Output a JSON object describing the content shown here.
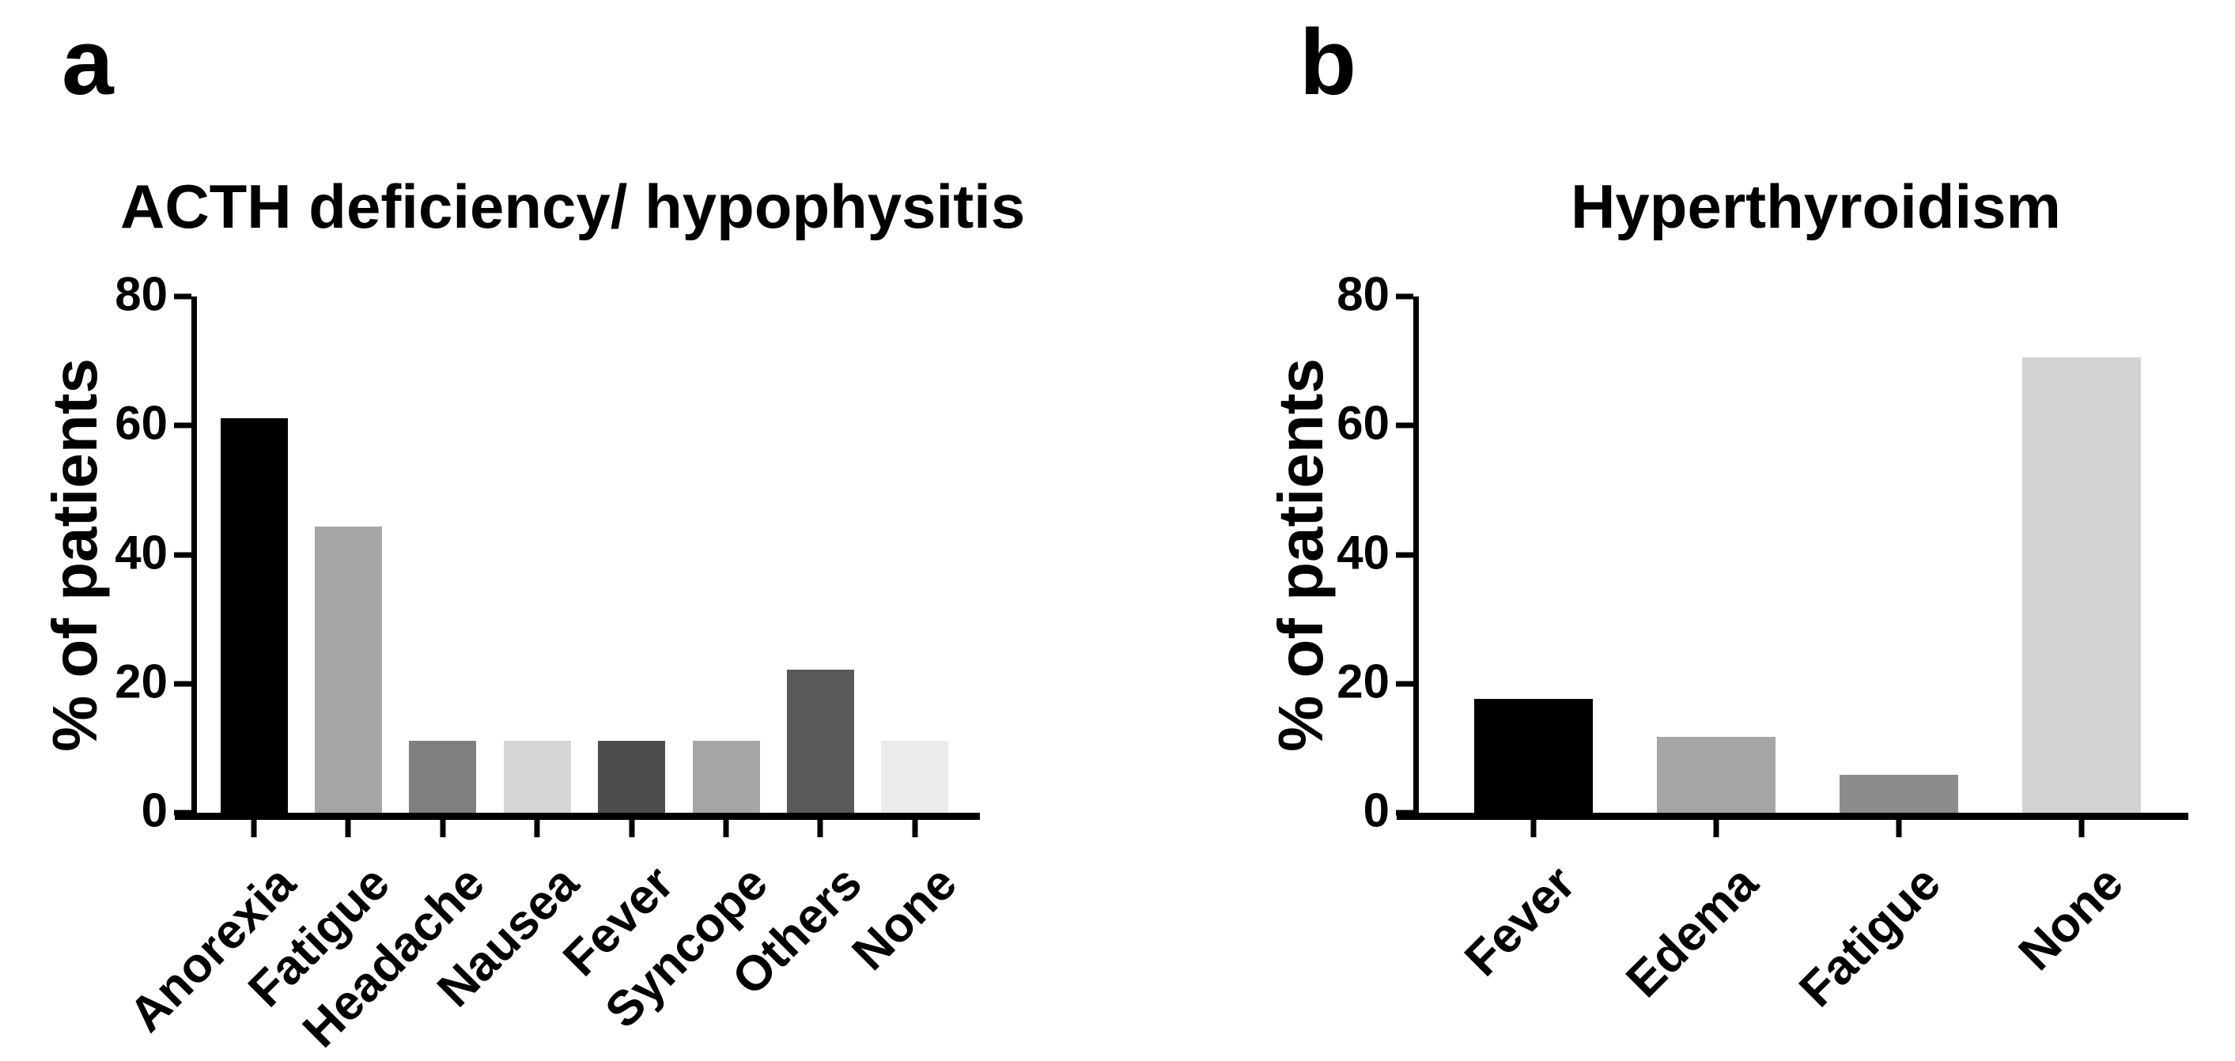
{
  "figure": {
    "background": "#ffffff",
    "axis_color": "#000000",
    "panels": [
      {
        "letter": "a",
        "title": "ACTH deficiency/ hypophysitis",
        "ylabel": "% of patients"
      },
      {
        "letter": "b",
        "title": "Hyperthyroidism",
        "ylabel": "% of patients"
      }
    ]
  },
  "chart_data": [
    {
      "type": "bar",
      "title": "ACTH deficiency/ hypophysitis",
      "xlabel": "",
      "ylabel": "% of patients",
      "categories": [
        "Anorexia",
        "Fatigue",
        "Headache",
        "Nausea",
        "Fever",
        "Syncope",
        "Others",
        "None"
      ],
      "values": [
        61.1,
        44.4,
        11.1,
        11.1,
        11.1,
        11.1,
        22.2,
        11.1
      ],
      "bar_colors": [
        "#000000",
        "#a6a6a6",
        "#7f7f7f",
        "#d6d6d6",
        "#4d4d4d",
        "#a6a6a6",
        "#595959",
        "#ebebeb"
      ],
      "ylim": [
        0,
        80
      ],
      "yticks": [
        0,
        20,
        40,
        60,
        80
      ],
      "grid": false,
      "legend": false,
      "tick_label_rotation_deg": -45
    },
    {
      "type": "bar",
      "title": "Hyperthyroidism",
      "xlabel": "",
      "ylabel": "% of patients",
      "categories": [
        "Fever",
        "Edema",
        "Fatigue",
        "None"
      ],
      "values": [
        17.6,
        11.8,
        5.9,
        70.6
      ],
      "bar_colors": [
        "#000000",
        "#a6a6a6",
        "#8c8c8c",
        "#d2d2d2"
      ],
      "ylim": [
        0,
        80
      ],
      "yticks": [
        0,
        20,
        40,
        60,
        80
      ],
      "grid": false,
      "legend": false,
      "tick_label_rotation_deg": -45
    }
  ]
}
